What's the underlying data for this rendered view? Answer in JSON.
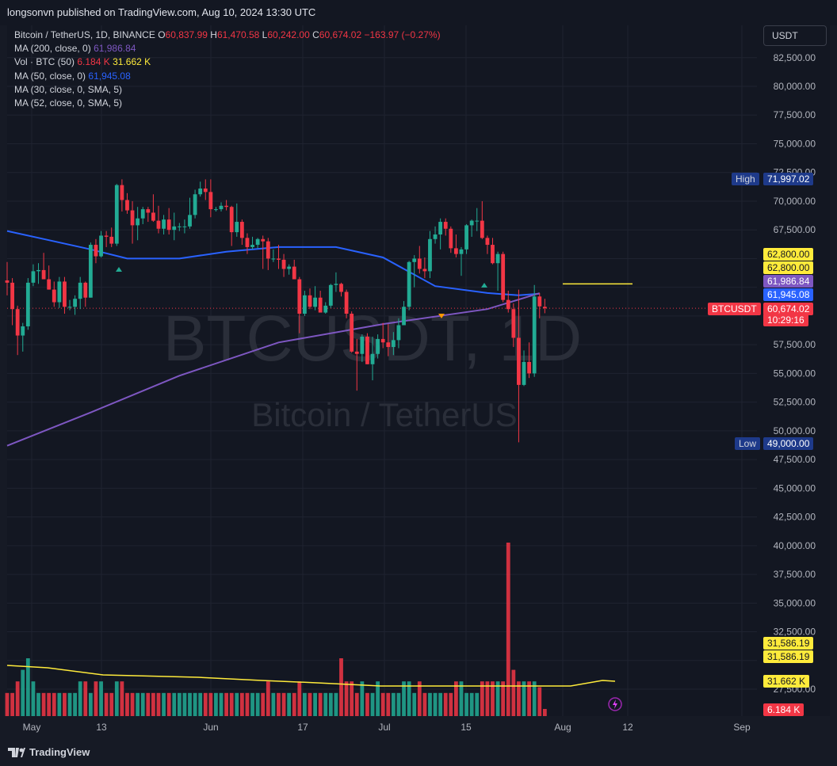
{
  "header": {
    "published": "longsonvn published on TradingView.com, Aug 10, 2024 13:30 UTC"
  },
  "legend": {
    "symbol": "Bitcoin / TetherUS, 1D, BINANCE",
    "o_label": "O",
    "o": "60,837.99",
    "h_label": "H",
    "h": "61,470.58",
    "l_label": "L",
    "l": "60,242.00",
    "c_label": "C",
    "c": "60,674.02",
    "change": "−163.97 (−0.27%)",
    "ma200": {
      "label": "MA (200, close, 0)",
      "value": "61,986.84"
    },
    "vol": {
      "label": "Vol · BTC (50)",
      "v1": "6.184 K",
      "v2": "31.662 K"
    },
    "ma50": {
      "label": "MA (50, close, 0)",
      "value": "61,945.08"
    },
    "ma30": {
      "label": "MA (30, close, 0, SMA, 5)"
    },
    "ma52": {
      "label": "MA (52, close, 0, SMA, 5)"
    }
  },
  "watermark": {
    "line1": "BTCUSDT, 1D",
    "line2": "Bitcoin / TetherUS"
  },
  "currency_button": "USDT",
  "price_axis": [
    "82,500.00",
    "80,000.00",
    "77,500.00",
    "75,000.00",
    "72,500.00",
    "70,000.00",
    "67,500.00",
    "57,500.00",
    "55,000.00",
    "52,500.00",
    "50,000.00",
    "47,500.00",
    "45,000.00",
    "42,500.00",
    "40,000.00",
    "37,500.00",
    "35,000.00",
    "32,500.00",
    "27,500.00"
  ],
  "badges": {
    "high_label": "High",
    "high": "71,997.02",
    "low_label": "Low",
    "low": "49,000.00",
    "level1": "62,800.00",
    "level2": "62,800.00",
    "ma200": "61,986.84",
    "ma50": "61,945.08",
    "symbol": "BTCUSDT",
    "last": "60,674.02",
    "countdown": "10:29:16",
    "vma1": "31,586.19",
    "vma2": "31,586.19",
    "volma": "31.662 K",
    "vol": "6.184 K"
  },
  "time_axis": [
    "May",
    "13",
    "Jun",
    "17",
    "Jul",
    "15",
    "Aug",
    "12",
    "Sep"
  ],
  "footer": {
    "brand": "TradingView"
  },
  "chart_data": {
    "type": "candlestick",
    "title": "Bitcoin / TetherUS, 1D, BINANCE",
    "ylim": [
      47500,
      82500
    ],
    "x": [
      "2024-04-29",
      "2024-04-30",
      "2024-05-01",
      "2024-05-02",
      "2024-05-03",
      "2024-05-04",
      "2024-05-05",
      "2024-05-06",
      "2024-05-07",
      "2024-05-08",
      "2024-05-09",
      "2024-05-10",
      "2024-05-11",
      "2024-05-12",
      "2024-05-13",
      "2024-05-14",
      "2024-05-15",
      "2024-05-16",
      "2024-05-17",
      "2024-05-18",
      "2024-05-19",
      "2024-05-20",
      "2024-05-21",
      "2024-05-22",
      "2024-05-23",
      "2024-05-24",
      "2024-05-25",
      "2024-05-26",
      "2024-05-27",
      "2024-05-28",
      "2024-05-29",
      "2024-05-30",
      "2024-05-31",
      "2024-06-01",
      "2024-06-02",
      "2024-06-03",
      "2024-06-04",
      "2024-06-05",
      "2024-06-06",
      "2024-06-07",
      "2024-06-08",
      "2024-06-09",
      "2024-06-10",
      "2024-06-11",
      "2024-06-12",
      "2024-06-13",
      "2024-06-14",
      "2024-06-15",
      "2024-06-16",
      "2024-06-17",
      "2024-06-18",
      "2024-06-19",
      "2024-06-20",
      "2024-06-21",
      "2024-06-22",
      "2024-06-23",
      "2024-06-24",
      "2024-06-25",
      "2024-06-26",
      "2024-06-27",
      "2024-06-28",
      "2024-06-29",
      "2024-06-30",
      "2024-07-01",
      "2024-07-02",
      "2024-07-03",
      "2024-07-04",
      "2024-07-05",
      "2024-07-06",
      "2024-07-07",
      "2024-07-08",
      "2024-07-09",
      "2024-07-10",
      "2024-07-11",
      "2024-07-12",
      "2024-07-13",
      "2024-07-14",
      "2024-07-15",
      "2024-07-16",
      "2024-07-17",
      "2024-07-18",
      "2024-07-19",
      "2024-07-20",
      "2024-07-21",
      "2024-07-22",
      "2024-07-23",
      "2024-07-24",
      "2024-07-25",
      "2024-07-26",
      "2024-07-27",
      "2024-07-28",
      "2024-07-29",
      "2024-07-30",
      "2024-07-31",
      "2024-08-01",
      "2024-08-02",
      "2024-08-03",
      "2024-08-04",
      "2024-08-05",
      "2024-08-06",
      "2024-08-07",
      "2024-08-08",
      "2024-08-09",
      "2024-08-10"
    ],
    "open": [
      63100,
      62900,
      60600,
      58300,
      59100,
      62900,
      63900,
      64000,
      63200,
      62300,
      61200,
      63000,
      60800,
      60800,
      61500,
      62900,
      61600,
      66200,
      65200,
      67000,
      66900,
      66300,
      71400,
      70100,
      69200,
      67900,
      68500,
      69300,
      69000,
      68300,
      67600,
      68400,
      67500,
      67800,
      67800,
      67800,
      68800,
      70600,
      71100,
      70800,
      69300,
      69300,
      69600,
      69500,
      67300,
      68200,
      66800,
      66000,
      66200,
      66700,
      66500,
      65000,
      65000,
      64900,
      64100,
      64300,
      63200,
      60200,
      61800,
      60800,
      61600,
      60300,
      60900,
      62700,
      62800,
      62100,
      60200,
      56900,
      56700,
      58200,
      55800,
      56700,
      58000,
      57700,
      57300,
      57900,
      59200,
      60800,
      64700,
      65000,
      64100,
      63900,
      66700,
      67100,
      68200,
      67600,
      65900,
      65400,
      65800,
      67900,
      68300,
      68300,
      66800,
      66200,
      64600,
      65400,
      61400,
      60600,
      58100,
      54000,
      56000,
      55000,
      61700,
      60800
    ],
    "high": [
      64700,
      63300,
      60900,
      59400,
      63300,
      64500,
      64600,
      65500,
      64400,
      63000,
      63400,
      63400,
      61400,
      61800,
      63400,
      63000,
      66400,
      66700,
      67400,
      67400,
      67700,
      71500,
      71900,
      70700,
      70000,
      69500,
      69500,
      69500,
      70600,
      69600,
      68800,
      69400,
      69000,
      68100,
      68400,
      70300,
      71000,
      71700,
      71900,
      71900,
      69500,
      69900,
      70100,
      69600,
      69800,
      68400,
      67200,
      66900,
      66800,
      67000,
      66800,
      65800,
      66200,
      65400,
      64500,
      64900,
      63400,
      62200,
      62400,
      62600,
      62200,
      61200,
      62800,
      63800,
      62900,
      62300,
      60400,
      58000,
      58400,
      58500,
      58200,
      58400,
      59400,
      59300,
      58600,
      59800,
      61300,
      64800,
      65300,
      66100,
      65100,
      67400,
      67800,
      68500,
      68500,
      67800,
      67100,
      66000,
      68000,
      68400,
      69400,
      70000,
      67000,
      66800,
      65600,
      65600,
      62200,
      61100,
      62300,
      57000,
      57700,
      62700,
      62000,
      61500
    ],
    "low": [
      61800,
      59200,
      56600,
      56900,
      58800,
      62600,
      62800,
      63300,
      62300,
      60800,
      60700,
      60200,
      60500,
      60100,
      60600,
      60800,
      61600,
      64600,
      65100,
      66000,
      66000,
      66100,
      69100,
      68900,
      66300,
      66600,
      68000,
      68200,
      68200,
      67200,
      67100,
      67100,
      66600,
      67400,
      67200,
      67600,
      68500,
      70400,
      70100,
      68600,
      69100,
      69100,
      69200,
      66100,
      66900,
      66200,
      65400,
      65800,
      65900,
      64100,
      64000,
      64700,
      64100,
      63400,
      63600,
      63200,
      58500,
      60000,
      60600,
      60500,
      60400,
      60200,
      60700,
      62100,
      61700,
      59800,
      56800,
      53500,
      56000,
      55800,
      54400,
      56300,
      57200,
      56500,
      56600,
      57200,
      59200,
      60500,
      62500,
      63700,
      63300,
      63300,
      66300,
      65800,
      67000,
      65500,
      65100,
      63500,
      65400,
      66900,
      67400,
      66700,
      65400,
      64500,
      62200,
      61200,
      60300,
      57300,
      49000,
      53900,
      54600,
      54700,
      59800,
      60240
    ],
    "close": [
      62900,
      60600,
      58300,
      59100,
      62900,
      63900,
      64000,
      63200,
      62300,
      61200,
      63000,
      60800,
      60800,
      61500,
      62900,
      61600,
      66200,
      65200,
      67000,
      66900,
      66300,
      71400,
      70100,
      69200,
      67900,
      68500,
      69300,
      69000,
      68300,
      67600,
      68400,
      67500,
      67800,
      67800,
      67800,
      68800,
      70600,
      71100,
      70800,
      69300,
      69300,
      69600,
      69500,
      67300,
      68200,
      66800,
      66000,
      66200,
      66700,
      66500,
      65000,
      65000,
      64900,
      64100,
      64300,
      63200,
      60200,
      61800,
      60800,
      61600,
      60300,
      60900,
      62700,
      62800,
      62100,
      60200,
      56900,
      56700,
      58200,
      55800,
      56700,
      58000,
      57700,
      57300,
      57900,
      59200,
      60800,
      64700,
      65000,
      64100,
      63900,
      66700,
      67100,
      68200,
      67600,
      65900,
      65400,
      65800,
      67900,
      68300,
      68300,
      66800,
      66200,
      64600,
      65400,
      61400,
      60600,
      58100,
      54000,
      56000,
      55000,
      61700,
      60837,
      60674
    ],
    "series": [
      {
        "name": "MA (50, close, 0)",
        "x": [
          "2024-04-29",
          "2024-05-07",
          "2024-05-15",
          "2024-05-22",
          "2024-06-01",
          "2024-06-10",
          "2024-06-20",
          "2024-07-01",
          "2024-07-10",
          "2024-07-20",
          "2024-07-30",
          "2024-08-05",
          "2024-08-09"
        ],
        "values": [
          67400,
          66600,
          65800,
          65000,
          65000,
          65600,
          66000,
          66000,
          65100,
          62600,
          62000,
          61800,
          61945
        ]
      },
      {
        "name": "MA (200, close, 0)",
        "x": [
          "2024-04-29",
          "2024-05-15",
          "2024-06-01",
          "2024-06-20",
          "2024-07-10",
          "2024-07-30",
          "2024-08-09"
        ],
        "values": [
          48700,
          51600,
          54800,
          57700,
          59300,
          60600,
          61987
        ]
      }
    ],
    "volume": {
      "ylim_note": "volume in BTC (K)",
      "values": [
        20,
        20,
        30,
        40,
        50,
        30,
        20,
        20,
        20,
        20,
        20,
        20,
        20,
        20,
        30,
        30,
        20,
        30,
        30,
        20,
        20,
        30,
        30,
        20,
        20,
        20,
        20,
        20,
        20,
        20,
        20,
        20,
        20,
        20,
        20,
        20,
        20,
        20,
        20,
        20,
        20,
        20,
        20,
        20,
        20,
        20,
        20,
        20,
        20,
        20,
        30,
        20,
        20,
        20,
        20,
        20,
        30,
        20,
        20,
        20,
        20,
        20,
        20,
        20,
        50,
        30,
        30,
        20,
        30,
        20,
        20,
        30,
        20,
        20,
        20,
        20,
        30,
        30,
        20,
        30,
        20,
        20,
        20,
        20,
        20,
        20,
        30,
        30,
        20,
        20,
        20,
        30,
        30,
        30,
        30,
        30,
        150,
        40,
        30,
        30,
        30,
        30,
        25,
        6.184
      ],
      "ma_label": "31.662 K"
    }
  }
}
